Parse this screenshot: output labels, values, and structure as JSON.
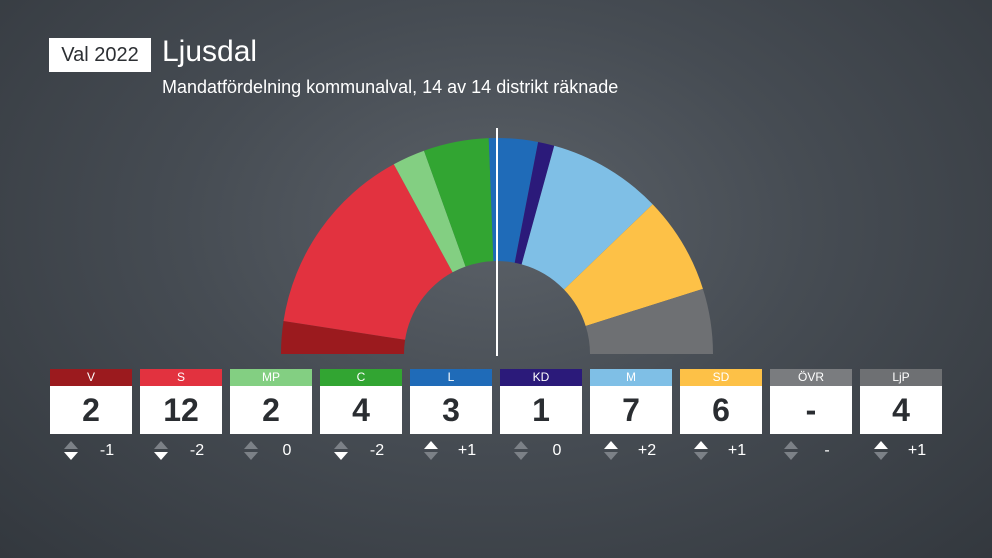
{
  "header": {
    "badge": "Val 2022",
    "title": "Ljusdal",
    "subtitle": "Mandatfördelning kommunalval, 14 av 14 distrikt räknade"
  },
  "chart_data": {
    "type": "parliament",
    "total_seats": 41,
    "series": [
      {
        "name": "V",
        "seats": 2,
        "seats_label": "2",
        "change": -1,
        "change_label": "-1",
        "color": "#9b1a1e"
      },
      {
        "name": "S",
        "seats": 12,
        "seats_label": "12",
        "change": -2,
        "change_label": "-2",
        "color": "#e2323f"
      },
      {
        "name": "MP",
        "seats": 2,
        "seats_label": "2",
        "change": 0,
        "change_label": "0",
        "color": "#83cf82"
      },
      {
        "name": "C",
        "seats": 4,
        "seats_label": "4",
        "change": -2,
        "change_label": "-2",
        "color": "#32a532"
      },
      {
        "name": "L",
        "seats": 3,
        "seats_label": "3",
        "change": 1,
        "change_label": "+1",
        "color": "#1f6bb8"
      },
      {
        "name": "KD",
        "seats": 1,
        "seats_label": "1",
        "change": 0,
        "change_label": "0",
        "color": "#2b1a7a"
      },
      {
        "name": "M",
        "seats": 7,
        "seats_label": "7",
        "change": 2,
        "change_label": "+2",
        "color": "#7fbfe6"
      },
      {
        "name": "SD",
        "seats": 6,
        "seats_label": "6",
        "change": 1,
        "change_label": "+1",
        "color": "#fdc147"
      },
      {
        "name": "ÖVR",
        "seats": 0,
        "seats_label": "-",
        "change": null,
        "change_label": "-",
        "color": "#7a7c7f"
      },
      {
        "name": "LjP",
        "seats": 4,
        "seats_label": "4",
        "change": 1,
        "change_label": "+1",
        "color": "#6e7073"
      }
    ],
    "majority_line": true
  }
}
